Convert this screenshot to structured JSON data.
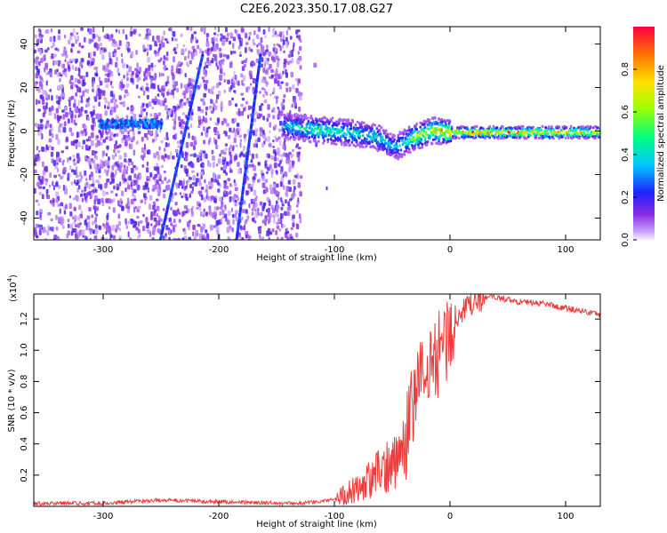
{
  "title": "C2E6.2023.350.17.08.G27",
  "chart_data": [
    {
      "type": "heatmap",
      "xlabel": "Height of straight line (km)",
      "ylabel": "Frequency (Hz)",
      "xlim": [
        -360,
        130
      ],
      "ylim": [
        -50,
        48
      ],
      "x_ticks": [
        -300,
        -200,
        -100,
        0,
        100
      ],
      "y_ticks": [
        -40,
        -20,
        0,
        20,
        40
      ],
      "colorbar": {
        "label": "Normalized spectral amplitude",
        "ticks": [
          "0.0",
          "0.2",
          "0.4",
          "0.6",
          "0.8"
        ],
        "range": [
          0,
          1
        ],
        "colormap": "rainbow (purple→blue→cyan→green→yellow→orange→red)"
      },
      "features": {
        "noise_region_x": [
          -360,
          -130
        ],
        "main_trace": {
          "x": [
            -145,
            -130,
            -110,
            -90,
            -75,
            -65,
            -55,
            -50,
            -45,
            -35,
            -25,
            -15,
            0,
            20,
            50,
            80,
            110,
            130
          ],
          "freq": [
            3,
            2,
            1,
            0,
            -1,
            -2,
            -5,
            -7,
            -6,
            -3,
            -1,
            1,
            0,
            0,
            0,
            0,
            0,
            0
          ],
          "peak_amplitude": [
            0.45,
            0.55,
            0.55,
            0.5,
            0.45,
            0.5,
            0.45,
            0.4,
            0.5,
            0.6,
            0.75,
            0.85,
            0.9,
            0.95,
            0.9,
            0.88,
            0.85,
            0.8
          ]
        },
        "early_cluster": {
          "x": [
            -305,
            -250
          ],
          "freq": [
            2,
            6
          ]
        },
        "streaks": [
          {
            "x": [
              -252,
              -215
            ],
            "freq": [
              -50,
              36
            ]
          },
          {
            "x": [
              -186,
              -165
            ],
            "freq": [
              -50,
              36
            ]
          }
        ]
      },
      "grid": false
    },
    {
      "type": "line",
      "xlabel": "Height of straight line (km)",
      "ylabel": "SNR (10 * v/v)",
      "multiplier": "(x10",
      "multiplier_exp": "4",
      "multiplier_close": ")",
      "xlim": [
        -360,
        130
      ],
      "ylim": [
        0,
        1.36
      ],
      "x_ticks": [
        -300,
        -200,
        -100,
        0,
        100
      ],
      "y_ticks": [
        "0.2",
        "0.4",
        "0.6",
        "0.8",
        "1.0",
        "1.2"
      ],
      "series": [
        {
          "color": "#ef3b3b",
          "x": [
            -360,
            -300,
            -250,
            -200,
            -150,
            -130,
            -110,
            -100,
            -90,
            -80,
            -70,
            -60,
            -50,
            -40,
            -35,
            -30,
            -25,
            -20,
            -15,
            -10,
            -5,
            0,
            5,
            10,
            20,
            30,
            40,
            60,
            80,
            100,
            130
          ],
          "y": [
            0.02,
            0.02,
            0.04,
            0.03,
            0.02,
            0.02,
            0.03,
            0.05,
            0.08,
            0.12,
            0.16,
            0.22,
            0.28,
            0.38,
            0.55,
            0.72,
            0.82,
            0.88,
            0.92,
            0.98,
            1.05,
            1.12,
            1.18,
            1.24,
            1.3,
            1.33,
            1.34,
            1.31,
            1.3,
            1.27,
            1.23
          ]
        }
      ],
      "grid": false
    }
  ]
}
